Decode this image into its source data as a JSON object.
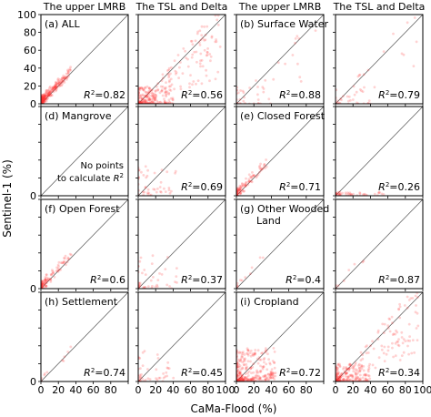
{
  "chart_data": {
    "type": "scatter",
    "layout": "4x4 small multiples",
    "xlabel": "CaMa-Flood (%)",
    "ylabel": "Sentinel-1 (%)",
    "xlim": [
      0,
      100
    ],
    "ylim": [
      0,
      100
    ],
    "x_ticks": [
      "0",
      "20",
      "40",
      "60",
      "80",
      "100"
    ],
    "x_ticks_inner": [
      "0",
      "20",
      "40",
      "60",
      "80"
    ],
    "y_ticks": [
      "0",
      "20",
      "40",
      "60",
      "80",
      "100"
    ],
    "one_to_one_line": true,
    "grid": false,
    "point_color": "#ff3030",
    "line_color": "#555555",
    "column_titles": [
      "The upper LMRB",
      "The TSL and Delta",
      "The upper LMRB",
      "The TSL and Delta"
    ],
    "panels": [
      {
        "row": 0,
        "col": 0,
        "label": "(a) ALL",
        "r2": "0.82",
        "density": "high",
        "spread": "low"
      },
      {
        "row": 0,
        "col": 1,
        "label": "",
        "r2": "0.56",
        "density": "high",
        "spread": "high"
      },
      {
        "row": 0,
        "col": 2,
        "label": "(b) Surface Water",
        "r2": "0.88",
        "density": "low",
        "spread": "high"
      },
      {
        "row": 0,
        "col": 3,
        "label": "",
        "r2": "0.79",
        "density": "low",
        "spread": "high"
      },
      {
        "row": 1,
        "col": 0,
        "label": "(d) Mangrove",
        "r2": "",
        "note_line1": "No points",
        "note_line2": "to calculate",
        "density": "none",
        "spread": "none"
      },
      {
        "row": 1,
        "col": 1,
        "label": "",
        "r2": "0.69",
        "density": "low",
        "spread": "medium"
      },
      {
        "row": 1,
        "col": 2,
        "label": "(e) Closed Forest",
        "r2": "0.71",
        "density": "medium",
        "spread": "low"
      },
      {
        "row": 1,
        "col": 3,
        "label": "",
        "r2": "0.26",
        "density": "low",
        "spread": "flat"
      },
      {
        "row": 2,
        "col": 0,
        "label": "(f) Open Forest",
        "r2": "0.6",
        "density": "medium",
        "spread": "low"
      },
      {
        "row": 2,
        "col": 1,
        "label": "",
        "r2": "0.37",
        "density": "low",
        "spread": "medium"
      },
      {
        "row": 2,
        "col": 2,
        "label": "(g) Other Wooded",
        "label_line2": "Land",
        "r2": "0.4",
        "density": "very-low",
        "spread": "low"
      },
      {
        "row": 2,
        "col": 3,
        "label": "",
        "r2": "0.87",
        "density": "very-low",
        "spread": "low"
      },
      {
        "row": 3,
        "col": 0,
        "label": "(h) Settlement",
        "r2": "0.74",
        "density": "very-low",
        "spread": "low"
      },
      {
        "row": 3,
        "col": 1,
        "label": "",
        "r2": "0.45",
        "density": "low",
        "spread": "medium"
      },
      {
        "row": 3,
        "col": 2,
        "label": "(i) Cropland",
        "r2": "0.72",
        "density": "high",
        "spread": "medium"
      },
      {
        "row": 3,
        "col": 3,
        "label": "",
        "r2": "0.34",
        "density": "high",
        "spread": "high"
      }
    ]
  }
}
